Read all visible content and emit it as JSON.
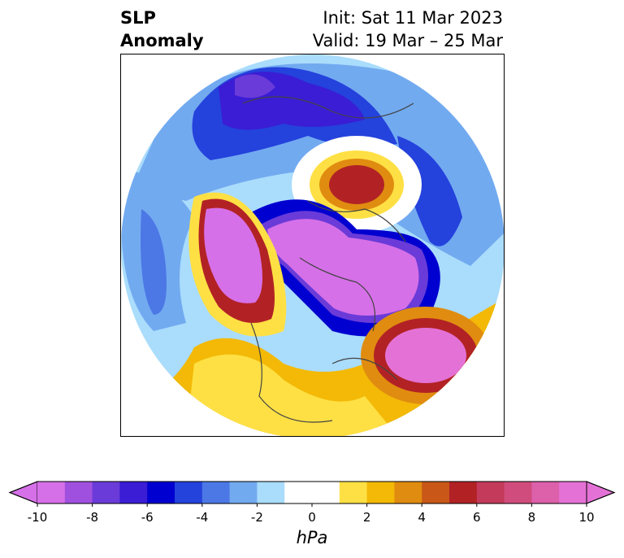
{
  "header": {
    "variable_line1": "SLP",
    "variable_line2": "Anomaly",
    "init_line": "Init: Sat 11 Mar 2023",
    "valid_line": "Valid: 19 Mar – 25 Mar"
  },
  "map": {
    "projection": "north-polar-stereographic",
    "features": [
      {
        "name": "aleutian-positive-anomaly",
        "description_color": "#d670e8"
      },
      {
        "name": "north-atlantic-positive-anomaly",
        "description_color": "#e472d6"
      },
      {
        "name": "arctic-central-negative-anomaly",
        "description_color": "#d670e8"
      },
      {
        "name": "eurasia-negative-anomaly",
        "description_color": "#0000d0"
      },
      {
        "name": "siberia-positive-anomaly",
        "description_color": "#b22225"
      }
    ]
  },
  "colorbar": {
    "label": "hPa",
    "ticks": [
      "-10",
      "-8",
      "-6",
      "-4",
      "-2",
      "0",
      "2",
      "4",
      "6",
      "8",
      "10"
    ],
    "extend": "both",
    "colors": [
      "#d670e8",
      "#a050df",
      "#6a3bd8",
      "#3a1dd4",
      "#0000d0",
      "#2442dc",
      "#4c78e6",
      "#72aaf0",
      "#aadcfc",
      "#ffffff",
      "#ffffff",
      "#ffe044",
      "#f3b906",
      "#e08c10",
      "#c85718",
      "#b22225",
      "#c43a5a",
      "#d04c7c",
      "#dc60aa",
      "#e472d6"
    ]
  }
}
